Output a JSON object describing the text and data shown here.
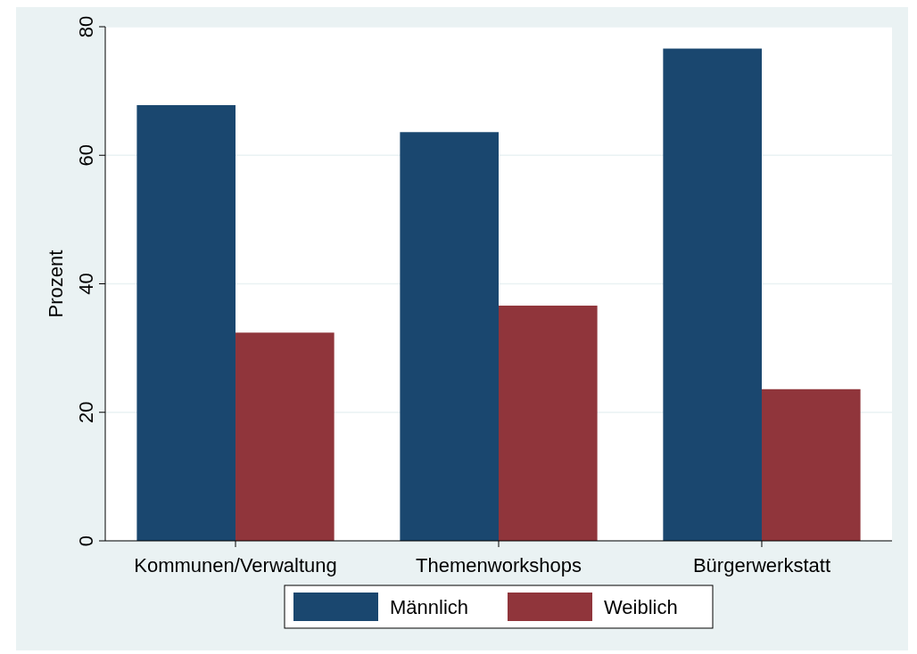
{
  "chart_data": {
    "type": "bar",
    "ylabel": "Prozent",
    "categories": [
      "Kommunen/Verwaltung",
      "Themenworkshops",
      "Bürgerwerkstatt"
    ],
    "series": [
      {
        "name": "Männlich",
        "color": "#1a476f",
        "values": [
          67.8,
          63.6,
          76.6
        ]
      },
      {
        "name": "Weiblich",
        "color": "#90353b",
        "values": [
          32.4,
          36.6,
          23.6
        ]
      }
    ],
    "ylim": [
      0,
      80
    ],
    "yticks": [
      0,
      20,
      40,
      60,
      80
    ],
    "grid": "y",
    "legend": "bottom"
  }
}
